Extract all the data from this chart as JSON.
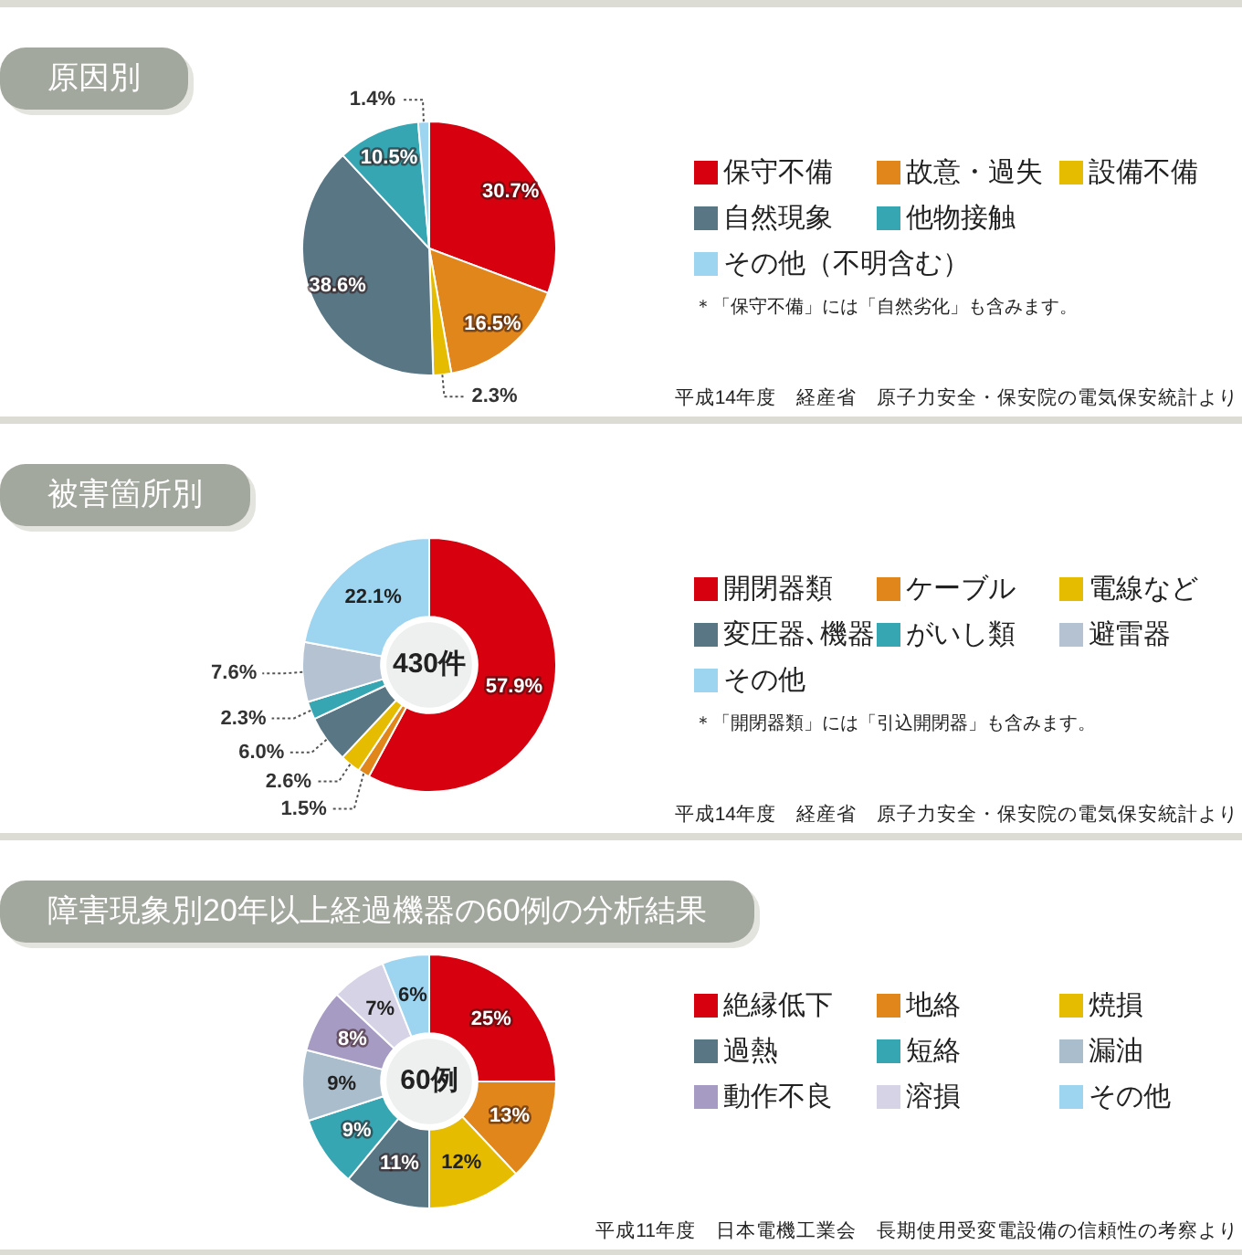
{
  "chart_data": [
    {
      "type": "pie",
      "title": "原因別",
      "categories": [
        "保守不備",
        "故意・過失",
        "設備不備",
        "自然現象",
        "他物接触",
        "その他（不明含む）"
      ],
      "values": [
        30.7,
        16.5,
        2.3,
        38.6,
        10.5,
        1.4
      ],
      "colors": [
        "#d7000f",
        "#e0861a",
        "#e6bc00",
        "#587684",
        "#36a6b3",
        "#9dd4f0"
      ],
      "value_labels": [
        "30.7%",
        "16.5%",
        "2.3%",
        "38.6%",
        "10.5%",
        "1.4%"
      ],
      "legend": "right",
      "annotations": [
        "＊「保守不備」には「自然劣化」も含みます。",
        "平成14年度　経産省　原子力安全・保安院の電気保安統計より"
      ]
    },
    {
      "type": "donut",
      "title": "被害箇所別",
      "categories": [
        "開閉器類",
        "ケーブル",
        "電線など",
        "変圧器､機器",
        "がいし類",
        "避雷器",
        "その他"
      ],
      "values": [
        57.9,
        1.5,
        2.6,
        6.0,
        2.3,
        7.6,
        22.1
      ],
      "colors": [
        "#d7000f",
        "#e0861a",
        "#e6bc00",
        "#587684",
        "#36a6b3",
        "#b4c2d2",
        "#9dd4f0"
      ],
      "value_labels": [
        "57.9%",
        "1.5%",
        "2.6%",
        "6.0%",
        "2.3%",
        "7.6%",
        "22.1%"
      ],
      "totals": [
        "430件"
      ],
      "legend": "right",
      "annotations": [
        "＊「開閉器類」には「引込開閉器」も含みます。",
        "平成14年度　経産省　原子力安全・保安院の電気保安統計より"
      ]
    },
    {
      "type": "donut",
      "title": "障害現象別20年以上経過機器の60例の分析結果",
      "categories": [
        "絶縁低下",
        "地絡",
        "焼損",
        "過熱",
        "短絡",
        "漏油",
        "動作不良",
        "溶損",
        "その他"
      ],
      "values": [
        25,
        13,
        12,
        11,
        9,
        9,
        8,
        7,
        6
      ],
      "colors": [
        "#d7000f",
        "#e0861a",
        "#e6bc00",
        "#587684",
        "#36a6b3",
        "#a9bdcc",
        "#a59bc3",
        "#d6d3e7",
        "#9dd4f0"
      ],
      "value_labels": [
        "25%",
        "13%",
        "12%",
        "11%",
        "9%",
        "9%",
        "8%",
        "7%",
        "6%"
      ],
      "totals": [
        "60例"
      ],
      "legend": "right",
      "annotations": [
        "平成11年度　日本電機工業会　長期使用受変電設備の信頼性の考察より"
      ]
    }
  ]
}
